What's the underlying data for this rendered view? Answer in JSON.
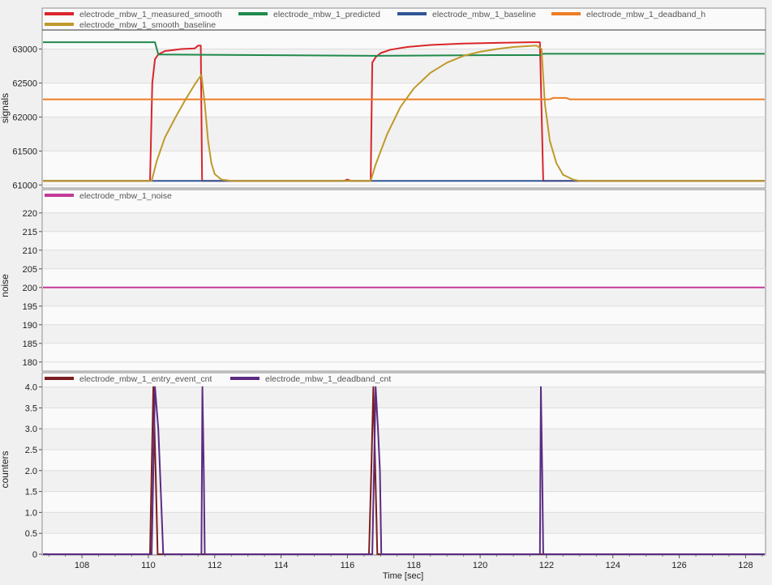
{
  "xlabel": "Time [sec]",
  "x_ticks": [
    "108",
    "110",
    "112",
    "114",
    "116",
    "118",
    "120",
    "122",
    "124",
    "126",
    "128"
  ],
  "colors": {
    "measured_smooth": "#d9262b",
    "predicted": "#1f8a4c",
    "baseline": "#2f5597",
    "deadband_h": "#ee7d23",
    "smooth_baseline": "#bf9a2b",
    "noise": "#c43b97",
    "entry_event_cnt": "#7b1e1e",
    "deadband_cnt": "#5b2c83",
    "plot_bg": "#fafafa",
    "band": "#f1f1f1",
    "grid": "#dedede"
  },
  "chart_data": [
    {
      "type": "line",
      "ylabel": "signals",
      "xlim": [
        106.8,
        128.6
      ],
      "ylim": [
        60980,
        63280
      ],
      "y_ticks": [
        "61000",
        "61500",
        "62000",
        "62500",
        "63000"
      ],
      "legend": [
        "electrode_mbw_1_measured_smooth",
        "electrode_mbw_1_predicted",
        "electrode_mbw_1_baseline",
        "electrode_mbw_1_deadband_h",
        "electrode_mbw_1_smooth_baseline"
      ],
      "series": [
        {
          "name": "electrode_mbw_1_measured_smooth",
          "color_key": "measured_smooth",
          "points": [
            [
              106.8,
              61060
            ],
            [
              110.05,
              61060
            ],
            [
              110.12,
              62500
            ],
            [
              110.2,
              62850
            ],
            [
              110.3,
              62920
            ],
            [
              110.5,
              62970
            ],
            [
              111,
              63000
            ],
            [
              111.4,
              63010
            ],
            [
              111.5,
              63050
            ],
            [
              111.58,
              63050
            ],
            [
              111.62,
              61060
            ],
            [
              115.9,
              61060
            ],
            [
              116.0,
              61080
            ],
            [
              116.1,
              61060
            ],
            [
              116.7,
              61060
            ],
            [
              116.75,
              62800
            ],
            [
              116.85,
              62880
            ],
            [
              117,
              62940
            ],
            [
              117.3,
              62990
            ],
            [
              117.8,
              63030
            ],
            [
              118.5,
              63060
            ],
            [
              119.5,
              63080
            ],
            [
              120.5,
              63090
            ],
            [
              121.5,
              63100
            ],
            [
              121.8,
              63100
            ],
            [
              121.9,
              61060
            ],
            [
              128.6,
              61060
            ]
          ]
        },
        {
          "name": "electrode_mbw_1_predicted",
          "color_key": "predicted",
          "points": [
            [
              106.8,
              63100
            ],
            [
              110.2,
              63100
            ],
            [
              110.3,
              62920
            ],
            [
              116.8,
              62900
            ],
            [
              120.5,
              62910
            ],
            [
              121.8,
              62910
            ],
            [
              121.9,
              62930
            ],
            [
              128.6,
              62930
            ]
          ]
        },
        {
          "name": "electrode_mbw_1_baseline",
          "color_key": "baseline",
          "points": [
            [
              106.8,
              61060
            ],
            [
              128.6,
              61060
            ]
          ]
        },
        {
          "name": "electrode_mbw_1_deadband_h",
          "color_key": "deadband_h",
          "points": [
            [
              106.8,
              62260
            ],
            [
              122.1,
              62260
            ],
            [
              122.2,
              62280
            ],
            [
              122.6,
              62280
            ],
            [
              122.7,
              62260
            ],
            [
              128.6,
              62260
            ]
          ]
        },
        {
          "name": "electrode_mbw_1_smooth_baseline",
          "color_key": "smooth_baseline",
          "points": [
            [
              106.8,
              61060
            ],
            [
              110.1,
              61060
            ],
            [
              110.25,
              61350
            ],
            [
              110.5,
              61700
            ],
            [
              110.8,
              61980
            ],
            [
              111.1,
              62240
            ],
            [
              111.4,
              62480
            ],
            [
              111.6,
              62620
            ],
            [
              111.7,
              62200
            ],
            [
              111.8,
              61650
            ],
            [
              111.9,
              61320
            ],
            [
              112,
              61160
            ],
            [
              112.2,
              61080
            ],
            [
              112.5,
              61060
            ],
            [
              116.7,
              61060
            ],
            [
              116.85,
              61300
            ],
            [
              117.2,
              61750
            ],
            [
              117.6,
              62150
            ],
            [
              118,
              62420
            ],
            [
              118.5,
              62650
            ],
            [
              119,
              62800
            ],
            [
              119.5,
              62900
            ],
            [
              120,
              62960
            ],
            [
              120.5,
              63000
            ],
            [
              121,
              63030
            ],
            [
              121.7,
              63050
            ],
            [
              121.85,
              63000
            ],
            [
              121.95,
              62200
            ],
            [
              122.1,
              61650
            ],
            [
              122.3,
              61320
            ],
            [
              122.5,
              61150
            ],
            [
              122.8,
              61080
            ],
            [
              123,
              61060
            ],
            [
              128.6,
              61060
            ]
          ]
        }
      ]
    },
    {
      "type": "line",
      "ylabel": "noise",
      "xlim": [
        106.8,
        128.6
      ],
      "ylim": [
        178,
        223
      ],
      "y_ticks": [
        "180",
        "185",
        "190",
        "195",
        "200",
        "205",
        "210",
        "215",
        "220"
      ],
      "legend": [
        "electrode_mbw_1_noise"
      ],
      "series": [
        {
          "name": "electrode_mbw_1_noise",
          "color_key": "noise",
          "points": [
            [
              106.8,
              200
            ],
            [
              128.6,
              200
            ]
          ]
        }
      ]
    },
    {
      "type": "line",
      "ylabel": "counters",
      "xlim": [
        106.8,
        128.6
      ],
      "ylim": [
        0,
        4.05
      ],
      "y_ticks": [
        "0",
        "0.5",
        "1.0",
        "1.5",
        "2.0",
        "2.5",
        "3.0",
        "3.5",
        "4.0"
      ],
      "legend": [
        "electrode_mbw_1_entry_event_cnt",
        "electrode_mbw_1_deadband_cnt"
      ],
      "series": [
        {
          "name": "electrode_mbw_1_entry_event_cnt",
          "color_key": "entry_event_cnt",
          "points": [
            [
              106.8,
              0
            ],
            [
              110.05,
              0
            ],
            [
              110.1,
              2
            ],
            [
              110.15,
              4
            ],
            [
              110.22,
              2
            ],
            [
              110.28,
              0
            ],
            [
              116.65,
              0
            ],
            [
              116.72,
              2
            ],
            [
              116.78,
              4
            ],
            [
              116.84,
              2
            ],
            [
              116.9,
              0
            ],
            [
              128.6,
              0
            ]
          ]
        },
        {
          "name": "electrode_mbw_1_deadband_cnt",
          "color_key": "deadband_cnt",
          "points": [
            [
              106.8,
              0
            ],
            [
              110.1,
              0
            ],
            [
              110.15,
              2
            ],
            [
              110.2,
              4
            ],
            [
              110.3,
              3
            ],
            [
              110.35,
              2
            ],
            [
              110.4,
              1
            ],
            [
              110.45,
              0
            ],
            [
              111.6,
              0
            ],
            [
              111.63,
              4
            ],
            [
              111.67,
              2
            ],
            [
              111.7,
              0
            ],
            [
              116.75,
              0
            ],
            [
              116.8,
              2
            ],
            [
              116.85,
              4
            ],
            [
              116.92,
              3
            ],
            [
              116.98,
              2
            ],
            [
              117.02,
              0
            ],
            [
              121.8,
              0
            ],
            [
              121.83,
              4
            ],
            [
              121.87,
              2
            ],
            [
              121.9,
              0
            ],
            [
              128.6,
              0
            ]
          ]
        }
      ]
    }
  ]
}
